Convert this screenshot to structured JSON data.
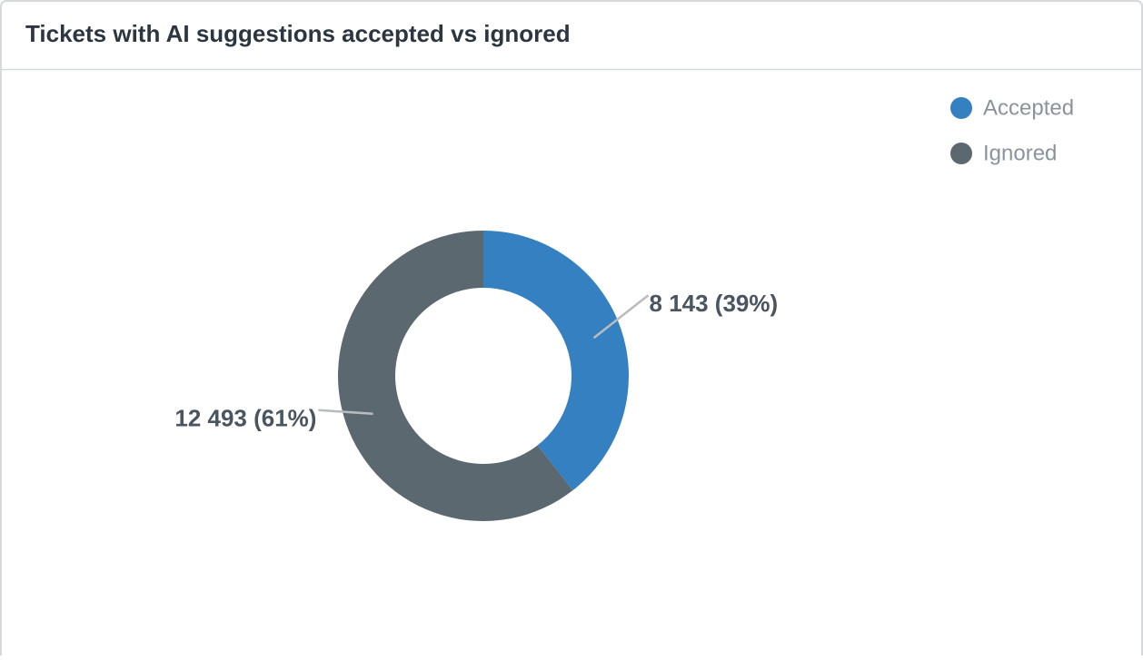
{
  "chart_data": {
    "type": "donut",
    "title": "Tickets with AI suggestions accepted vs ignored",
    "categories": [
      "Accepted",
      "Ignored"
    ],
    "values": [
      8143,
      12493
    ],
    "value_labels": [
      "8 143 (39%)",
      "12 493 (61%)"
    ],
    "colors": [
      "#3580c0",
      "#5b6870"
    ],
    "legend": "top-right"
  }
}
